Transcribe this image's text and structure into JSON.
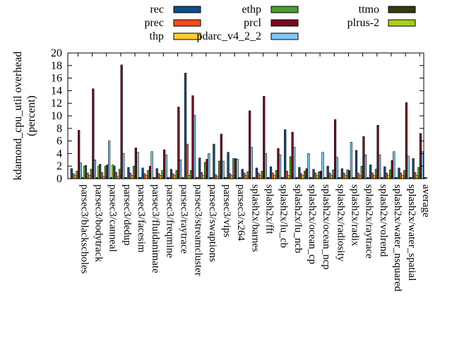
{
  "chart_data": {
    "type": "bar",
    "title": "",
    "xlabel": "",
    "ylabel": "kdamond_cpu_util overhead",
    "ylabel_unit": "(percent)",
    "ylim": [
      0,
      20
    ],
    "yticks": [
      0,
      2,
      4,
      6,
      8,
      10,
      12,
      14,
      16,
      18,
      20
    ],
    "grid": false,
    "legend_position": "top",
    "categories": [
      "parsec3/blackscholes",
      "parsec3/bodytrack",
      "parsec3/canneal",
      "parsec3/dedup",
      "parsec3/facesim",
      "parsec3/fluidanimate",
      "parsec3/freqmine",
      "parsec3/raytrace",
      "parsec3/streamcluster",
      "parsec3/swaptions",
      "parsec3/vips",
      "parsec3/x264",
      "splash2x/barnes",
      "splash2x/fft",
      "splash2x/lu_cb",
      "splash2x/lu_ncb",
      "splash2x/ocean_cp",
      "splash2x/ocean_ncp",
      "splash2x/radiosity",
      "splash2x/radix",
      "splash2x/raytrace",
      "splash2x/volrend",
      "splash2x/water_nsquared",
      "splash2x/water_spatial",
      "average"
    ],
    "series": [
      {
        "name": "rec",
        "color": "#0d4f8b",
        "values": [
          1.6,
          2.1,
          2.3,
          2.0,
          1.8,
          1.7,
          1.6,
          1.5,
          16.8,
          3.3,
          5.5,
          4.2,
          1.5,
          1.7,
          1.9,
          7.8,
          1.8,
          1.5,
          2.0,
          1.6,
          4.5,
          2.2,
          1.9,
          1.7,
          3.2
        ]
      },
      {
        "name": "prec",
        "color": "#ff4a1c",
        "values": [
          0.8,
          0.9,
          1.0,
          1.0,
          0.9,
          0.8,
          0.8,
          0.8,
          5.5,
          1.0,
          0.6,
          0.8,
          0.9,
          0.9,
          0.9,
          1.2,
          0.8,
          0.9,
          0.9,
          0.9,
          0.9,
          0.9,
          0.9,
          0.9,
          1.0
        ]
      },
      {
        "name": "thp",
        "color": "#ffcc33",
        "values": [
          0.5,
          0.5,
          0.4,
          0.4,
          0.5,
          0.5,
          0.5,
          0.5,
          0.5,
          0.5,
          0.4,
          0.5,
          0.5,
          0.5,
          0.5,
          0.5,
          0.5,
          0.5,
          0.5,
          0.5,
          0.5,
          0.5,
          0.5,
          0.5,
          0.5
        ]
      },
      {
        "name": "ethp",
        "color": "#4b9e2a",
        "values": [
          1.2,
          1.5,
          2.0,
          1.5,
          2.0,
          1.3,
          1.3,
          1.3,
          1.3,
          2.6,
          2.8,
          3.2,
          1.1,
          1.2,
          1.3,
          3.5,
          1.2,
          1.1,
          1.4,
          1.4,
          2.0,
          1.5,
          1.4,
          1.3,
          1.8
        ]
      },
      {
        "name": "prcl",
        "color": "#7a0a20",
        "values": [
          7.7,
          14.3,
          2.2,
          18.1,
          4.9,
          2.0,
          4.6,
          11.4,
          13.2,
          3.1,
          7.1,
          3.2,
          10.8,
          13.1,
          4.8,
          7.4,
          1.6,
          1.2,
          9.4,
          1.3,
          6.7,
          8.5,
          2.9,
          12.1,
          7.2
        ]
      },
      {
        "name": "pdarc_v4_2_2",
        "color": "#7cc8f8",
        "values": [
          2.5,
          3.0,
          6.0,
          4.0,
          4.2,
          4.3,
          3.8,
          3.0,
          10.1,
          4.0,
          2.8,
          3.1,
          5.0,
          4.0,
          3.8,
          5.0,
          4.0,
          4.2,
          3.4,
          5.8,
          3.8,
          3.8,
          4.3,
          3.6,
          4.3
        ]
      },
      {
        "name": "ttmo",
        "color": "#333d10",
        "values": [
          0.2,
          0.2,
          0.2,
          0.2,
          0.2,
          0.2,
          0.2,
          0.2,
          0.2,
          0.2,
          0.2,
          0.2,
          0.2,
          0.2,
          0.2,
          0.2,
          0.2,
          0.2,
          0.2,
          0.2,
          0.2,
          0.2,
          0.2,
          0.2,
          0.2
        ]
      },
      {
        "name": "plrus-2",
        "color": "#a8cf18",
        "values": [
          2.0,
          2.0,
          2.2,
          0.2,
          0.2,
          0.2,
          0.2,
          0.2,
          0.2,
          0.2,
          0.2,
          0.2,
          0.2,
          0.2,
          0.2,
          0.2,
          0.2,
          0.2,
          0.2,
          0.2,
          0.2,
          0.2,
          0.2,
          0.2,
          0.2
        ]
      }
    ]
  }
}
